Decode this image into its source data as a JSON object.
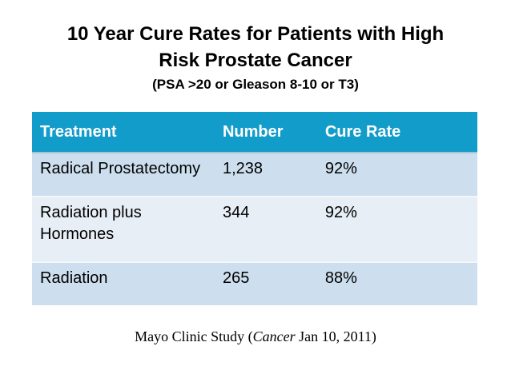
{
  "slide": {
    "title_line1": "10 Year Cure Rates for Patients with High",
    "title_line2": "Risk Prostate Cancer",
    "subtitle": "(PSA >20 or Gleason 8-10 or T3)",
    "footer": {
      "prefix": "Mayo Clinic Study (",
      "journal": "Cancer",
      "suffix": " Jan 10, 2011)"
    }
  },
  "table": {
    "columns": [
      "Treatment",
      "Number",
      "Cure Rate"
    ],
    "rows": [
      {
        "treatment": "Radical Prostatectomy",
        "number": "1,238",
        "cure_rate": "92%"
      },
      {
        "treatment": "Radiation plus Hormones",
        "number": "344",
        "cure_rate": "92%"
      },
      {
        "treatment": "Radiation",
        "number": "265",
        "cure_rate": "88%"
      }
    ]
  },
  "colors": {
    "header_bg": "#129cca",
    "header_text": "#ffffff",
    "row_dark": "#cddfee",
    "row_light": "#e7eef5",
    "header_separator": "#a6c4d8",
    "text": "#000000",
    "background": "#ffffff"
  }
}
